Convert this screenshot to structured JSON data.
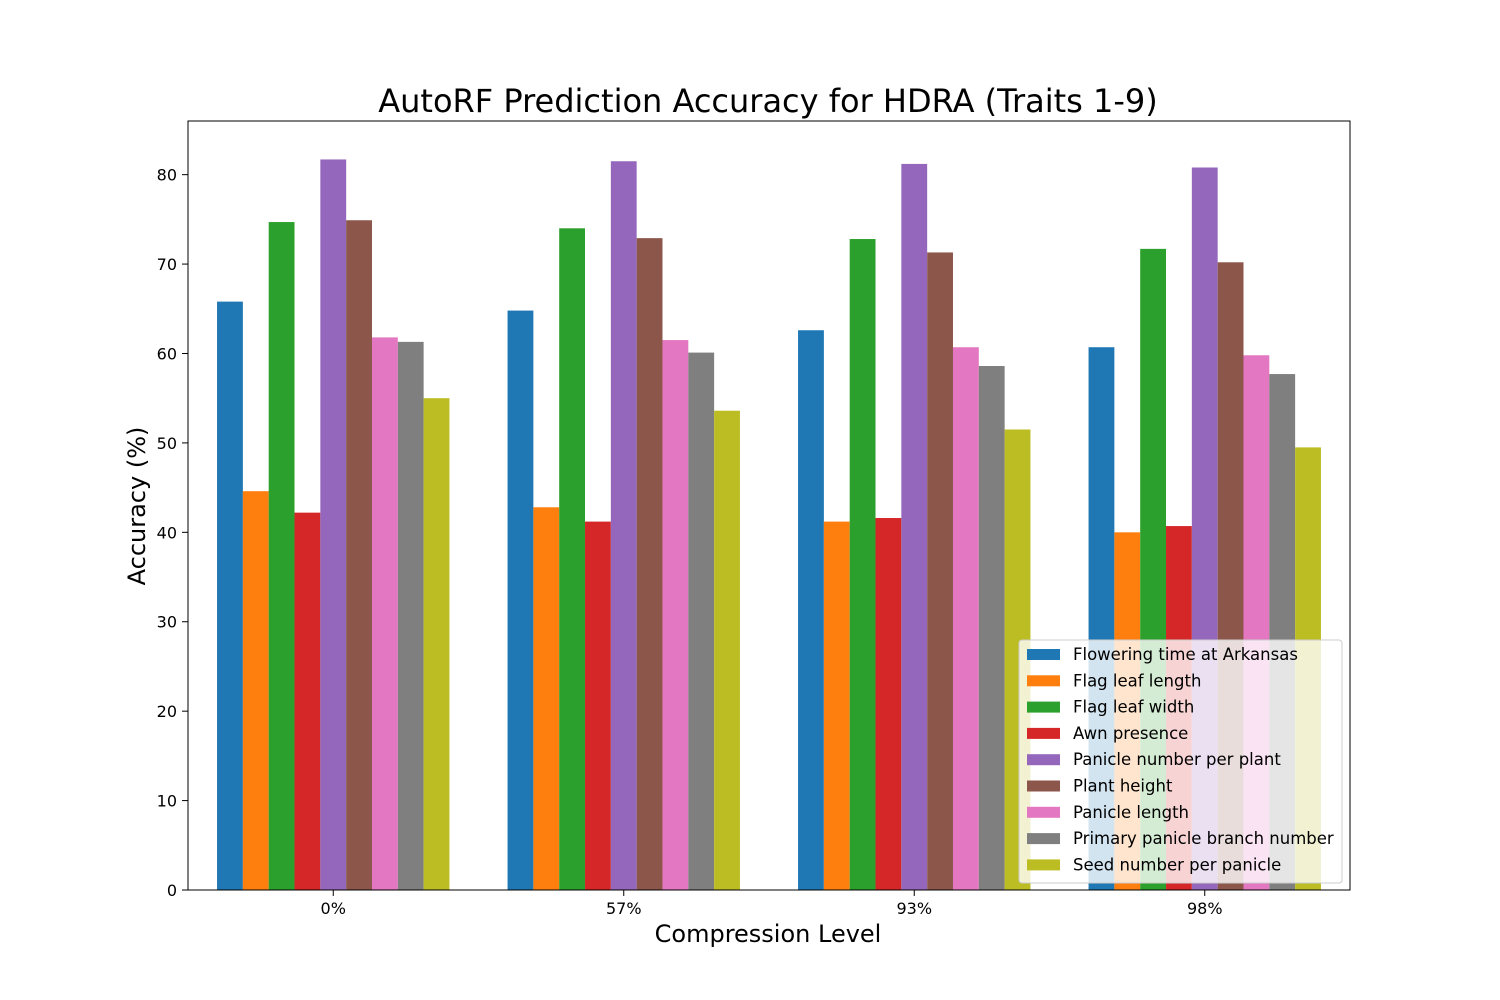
{
  "chart_data": {
    "type": "bar",
    "title": "AutoRF Prediction Accuracy for HDRA (Traits 1-9)",
    "xlabel": "Compression Level",
    "ylabel": "Accuracy (%)",
    "categories": [
      "0%",
      "57%",
      "93%",
      "98%"
    ],
    "ylim": [
      0,
      86
    ],
    "yticks": [
      0,
      10,
      20,
      30,
      40,
      50,
      60,
      70,
      80
    ],
    "grid": false,
    "legend_position": "lower-right",
    "series": [
      {
        "name": "Flowering time at Arkansas",
        "color": "#1f77b4",
        "values": [
          65.8,
          64.8,
          62.6,
          60.7
        ]
      },
      {
        "name": "Flag leaf length",
        "color": "#ff7f0e",
        "values": [
          44.6,
          42.8,
          41.2,
          40.0
        ]
      },
      {
        "name": "Flag leaf width",
        "color": "#2ca02c",
        "values": [
          74.7,
          74.0,
          72.8,
          71.7
        ]
      },
      {
        "name": "Awn presence",
        "color": "#d62728",
        "values": [
          42.2,
          41.2,
          41.6,
          40.7
        ]
      },
      {
        "name": "Panicle number per plant",
        "color": "#9467bd",
        "values": [
          81.7,
          81.5,
          81.2,
          80.8
        ]
      },
      {
        "name": "Plant height",
        "color": "#8c564b",
        "values": [
          74.9,
          72.9,
          71.3,
          70.2
        ]
      },
      {
        "name": "Panicle length",
        "color": "#e377c2",
        "values": [
          61.8,
          61.5,
          60.7,
          59.8
        ]
      },
      {
        "name": "Primary panicle branch number",
        "color": "#7f7f7f",
        "values": [
          61.3,
          60.1,
          58.6,
          57.7
        ]
      },
      {
        "name": "Seed number per panicle",
        "color": "#bcbd22",
        "values": [
          55.0,
          53.6,
          51.5,
          49.5
        ]
      }
    ]
  }
}
